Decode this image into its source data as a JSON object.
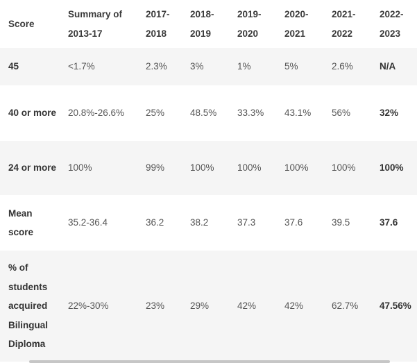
{
  "table": {
    "headers": [
      "Score",
      "Summary of 2013-17",
      "2017-2018",
      "2018-2019",
      "2019-2020",
      "2020-2021",
      "2021-2022",
      "2022-2023"
    ],
    "rows": [
      {
        "label": "45",
        "values": [
          "<1.7%",
          "2.3%",
          "3%",
          "1%",
          "5%",
          "2.6%",
          "N/A"
        ]
      },
      {
        "label": "40 or more",
        "values": [
          "20.8%-26.6%",
          "25%",
          "48.5%",
          "33.3%",
          "43.1%",
          "56%",
          "32%"
        ]
      },
      {
        "label": "24 or more",
        "values": [
          "100%",
          "99%",
          "100%",
          "100%",
          "100%",
          "100%",
          "100%"
        ]
      },
      {
        "label": "Mean score",
        "values": [
          "35.2-36.4",
          "36.2",
          "38.2",
          "37.3",
          "37.6",
          "39.5",
          "37.6"
        ]
      },
      {
        "label": "% of students acquired Bilingual Diploma",
        "values": [
          "22%-30%",
          "23%",
          "29%",
          "42%",
          "42%",
          "62.7%",
          "47.56%"
        ]
      }
    ]
  }
}
